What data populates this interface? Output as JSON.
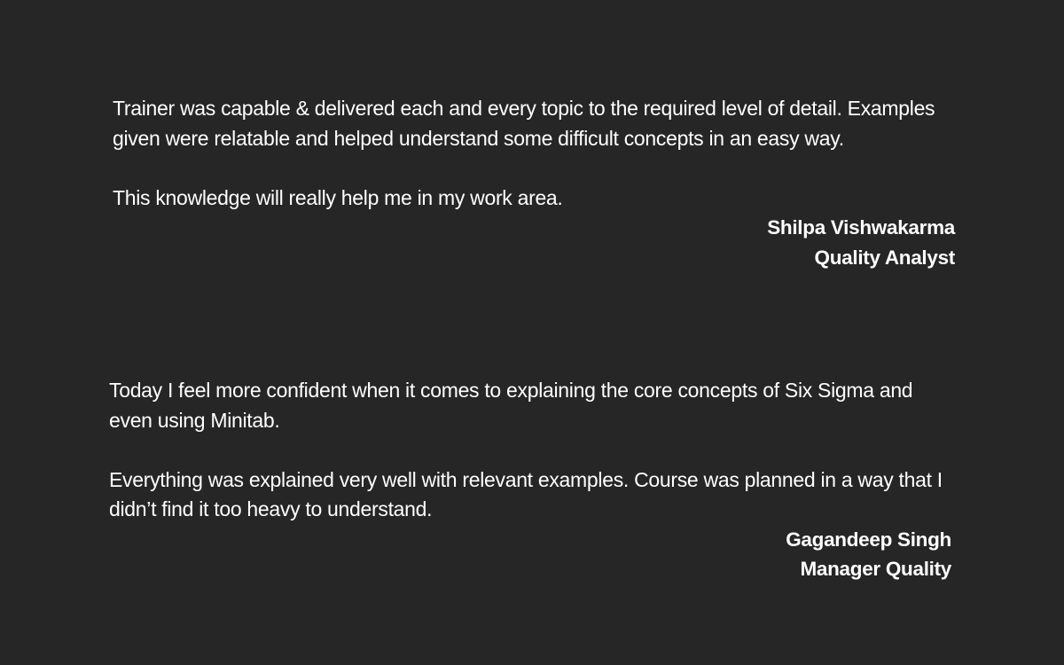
{
  "testimonials": [
    {
      "paragraphs": [
        "Trainer was capable & delivered each and every topic to the required level of detail. Examples given were relatable and helped understand some difficult concepts in an easy way.",
        "This knowledge will really help me in my work area."
      ],
      "name": "Shilpa Vishwakarma",
      "role": "Quality Analyst"
    },
    {
      "paragraphs": [
        "Today I feel more confident when it comes to explaining the core concepts of Six Sigma and even using Minitab.",
        "Everything was explained very well with relevant examples. Course was planned in a way that I didn’t find it too heavy to understand."
      ],
      "name": "Gagandeep Singh",
      "role": "Manager Quality"
    }
  ]
}
